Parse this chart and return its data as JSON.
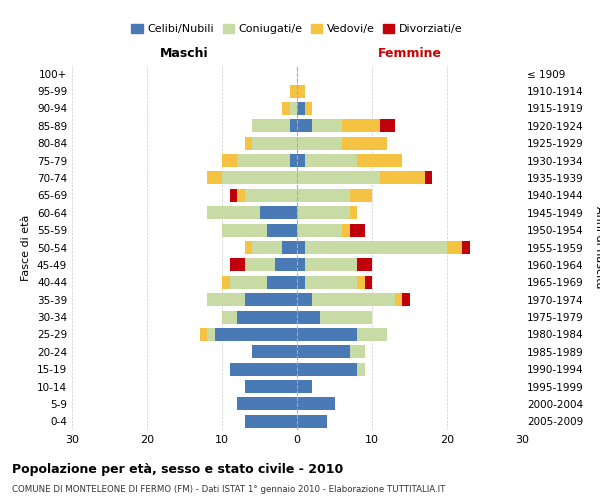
{
  "age_groups": [
    "0-4",
    "5-9",
    "10-14",
    "15-19",
    "20-24",
    "25-29",
    "30-34",
    "35-39",
    "40-44",
    "45-49",
    "50-54",
    "55-59",
    "60-64",
    "65-69",
    "70-74",
    "75-79",
    "80-84",
    "85-89",
    "90-94",
    "95-99",
    "100+"
  ],
  "birth_years": [
    "2005-2009",
    "2000-2004",
    "1995-1999",
    "1990-1994",
    "1985-1989",
    "1980-1984",
    "1975-1979",
    "1970-1974",
    "1965-1969",
    "1960-1964",
    "1955-1959",
    "1950-1954",
    "1945-1949",
    "1940-1944",
    "1935-1939",
    "1930-1934",
    "1925-1929",
    "1920-1924",
    "1915-1919",
    "1910-1914",
    "≤ 1909"
  ],
  "colors": {
    "celibi": "#4a7ab5",
    "coniugati": "#c8dba4",
    "vedovi": "#f5c242",
    "divorziati": "#c0000b"
  },
  "maschi": {
    "celibi": [
      7,
      8,
      7,
      9,
      6,
      11,
      8,
      7,
      4,
      3,
      2,
      4,
      5,
      0,
      0,
      1,
      0,
      1,
      0,
      0,
      0
    ],
    "coniugati": [
      0,
      0,
      0,
      0,
      0,
      1,
      2,
      5,
      5,
      4,
      4,
      6,
      7,
      7,
      10,
      7,
      6,
      5,
      1,
      0,
      0
    ],
    "vedovi": [
      0,
      0,
      0,
      0,
      0,
      1,
      0,
      0,
      1,
      0,
      1,
      0,
      0,
      1,
      2,
      2,
      1,
      0,
      1,
      1,
      0
    ],
    "divorziati": [
      0,
      0,
      0,
      0,
      0,
      0,
      0,
      0,
      0,
      2,
      0,
      0,
      0,
      1,
      0,
      0,
      0,
      0,
      0,
      0,
      0
    ]
  },
  "femmine": {
    "nubili": [
      4,
      5,
      2,
      8,
      7,
      8,
      3,
      2,
      1,
      1,
      1,
      0,
      0,
      0,
      0,
      1,
      0,
      2,
      1,
      0,
      0
    ],
    "coniugate": [
      0,
      0,
      0,
      1,
      2,
      4,
      7,
      11,
      7,
      7,
      19,
      6,
      7,
      7,
      11,
      7,
      6,
      4,
      0,
      0,
      0
    ],
    "vedove": [
      0,
      0,
      0,
      0,
      0,
      0,
      0,
      1,
      1,
      0,
      2,
      1,
      1,
      3,
      6,
      6,
      6,
      5,
      1,
      1,
      0
    ],
    "divorziate": [
      0,
      0,
      0,
      0,
      0,
      0,
      0,
      1,
      1,
      2,
      1,
      2,
      0,
      0,
      1,
      0,
      0,
      2,
      0,
      0,
      0
    ]
  },
  "xlim": 30,
  "title": "Popolazione per età, sesso e stato civile - 2010",
  "subtitle": "COMUNE DI MONTELEONE DI FERMO (FM) - Dati ISTAT 1° gennaio 2010 - Elaborazione TUTTITALIA.IT",
  "xlabel_left": "Maschi",
  "xlabel_right": "Femmine",
  "ylabel_left": "Fasce di età",
  "ylabel_right": "Anni di nascita",
  "legend_labels": [
    "Celibi/Nubili",
    "Coniugati/e",
    "Vedovi/e",
    "Divorziati/e"
  ],
  "bg_color": "#ffffff",
  "grid_color": "#cccccc"
}
